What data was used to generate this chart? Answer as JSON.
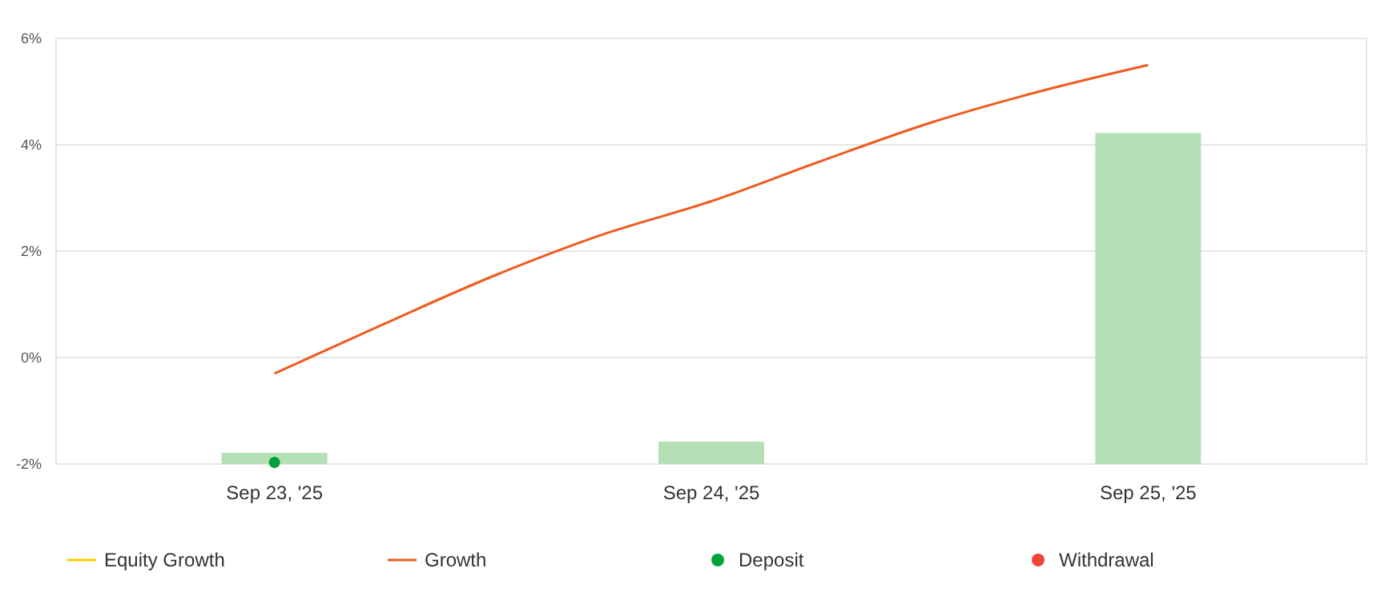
{
  "chart_data": {
    "type": "bar",
    "x": [
      "2025-09-23",
      "2025-09-24",
      "2025-09-25"
    ],
    "xlim": [
      "2025-09-22T12:00",
      "2025-09-25T12:00"
    ],
    "xticks": [
      {
        "value": "2025-09-23",
        "label": "Sep 23, '25"
      },
      {
        "value": "2025-09-24",
        "label": "Sep 24, '25"
      },
      {
        "value": "2025-09-25",
        "label": "Sep 25, '25"
      }
    ],
    "ylim": [
      -2,
      6
    ],
    "yticks": [
      {
        "value": -2,
        "label": "-2%"
      },
      {
        "value": 0,
        "label": "0%"
      },
      {
        "value": 2,
        "label": "2%"
      },
      {
        "value": 4,
        "label": "4%"
      },
      {
        "value": 6,
        "label": "6%"
      }
    ],
    "grid": "y",
    "legend": "bottom",
    "series": [
      {
        "color": "#b5dfb5",
        "base": [
          -2,
          -2,
          -2
        ],
        "values": [
          0.21,
          0.42,
          6.22
        ]
      },
      {
        "type": "line",
        "name": "Equity Growth",
        "color": "#ffcc00",
        "values": [
          null,
          null,
          null
        ]
      },
      {
        "type": "line",
        "name": "Growth",
        "color": "#f05a1e",
        "x": [
          "2025-09-23T00:00",
          "2025-09-23T06:00",
          "2025-09-23T12:00",
          "2025-09-23T18:00",
          "2025-09-24T00:00",
          "2025-09-24T06:00",
          "2025-09-24T12:00",
          "2025-09-24T18:00",
          "2025-09-25T00:00"
        ],
        "values": [
          -0.3,
          0.63,
          1.53,
          2.31,
          2.94,
          3.69,
          4.41,
          5.0,
          5.5
        ]
      },
      {
        "type": "scatter",
        "name": "Deposit",
        "color": "#00a33a",
        "x": [
          "2025-09-23"
        ],
        "values": [
          -1.97
        ]
      },
      {
        "type": "scatter",
        "name": "Withdrawal",
        "color": "#f04438",
        "values": [
          null,
          null,
          null
        ]
      }
    ]
  }
}
